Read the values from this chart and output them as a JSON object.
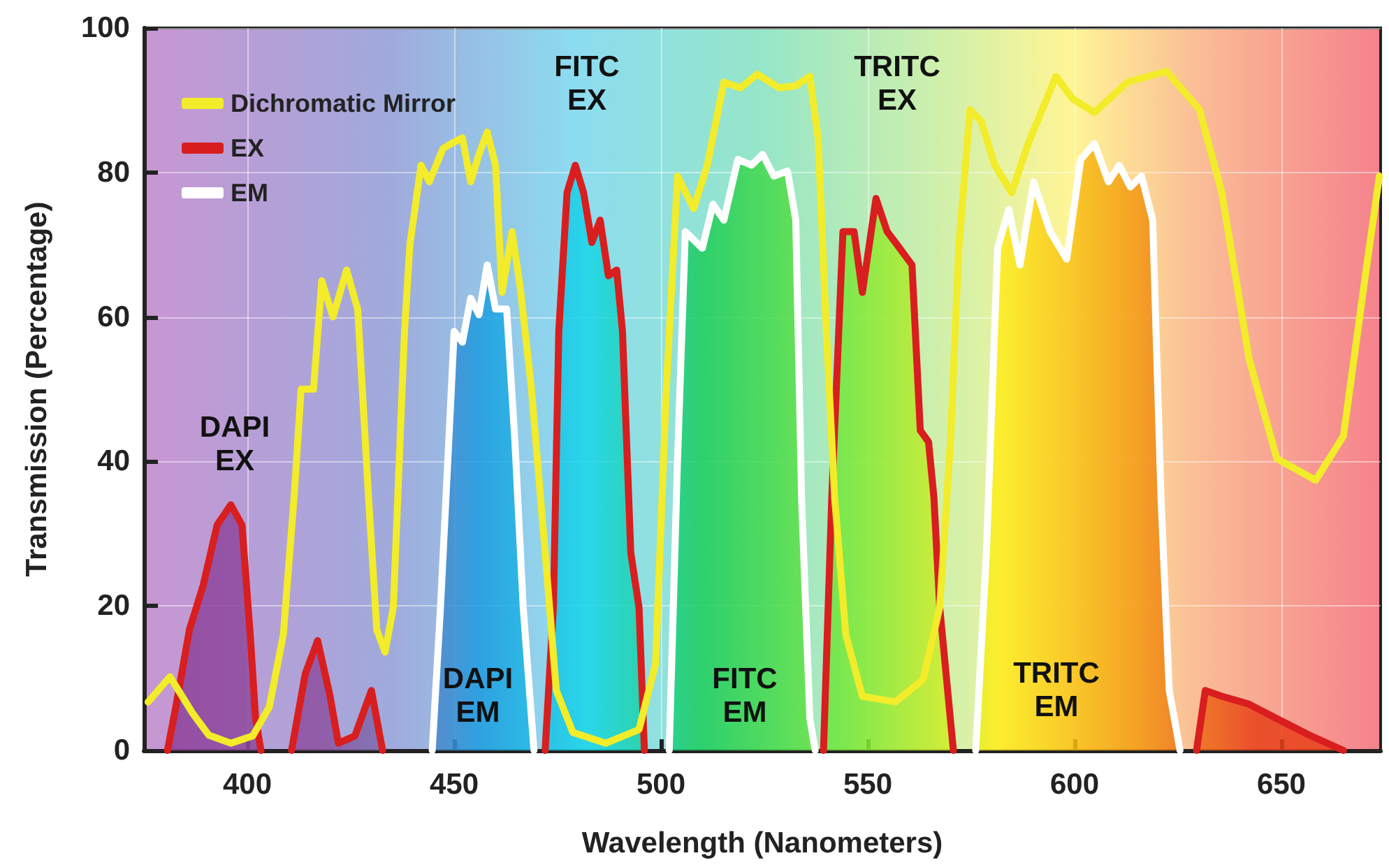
{
  "chart_data": {
    "type": "line",
    "xlabel": "Wavelength (Nanometers)",
    "ylabel": "Transmission (Percentage)",
    "xlim": [
      375,
      674
    ],
    "xticks": [
      400,
      450,
      500,
      550,
      600,
      650
    ],
    "ylim": [
      0,
      100
    ],
    "yticks": [
      0,
      20,
      40,
      60,
      80,
      100
    ],
    "grid": true,
    "legend": "top left",
    "marker": "none",
    "line_style": "solid",
    "series": [
      {
        "name": "Dichromatic Mirror",
        "type": "line",
        "color": "#f2ec2a",
        "x": [
          376,
          381.3,
          386.7,
          390.7,
          396,
          401.3,
          405.3,
          408.7,
          411.3,
          413,
          416,
          418,
          420.7,
          424,
          426.7,
          429.3,
          431.3,
          433.3,
          435.3,
          438,
          439.3,
          442,
          444,
          447.3,
          449.3,
          452,
          454,
          456,
          458,
          460,
          461.6,
          464,
          466,
          468.7,
          472,
          474.7,
          478.7,
          486.7,
          494.7,
          498.7,
          501.3,
          504,
          507.9,
          511.2,
          515.2,
          519.2,
          523.3,
          528.6,
          532.6,
          536,
          538,
          540,
          542,
          544.7,
          548.7,
          556.7,
          563.4,
          567.4,
          570,
          572,
          574.7,
          577.4,
          580.7,
          584.8,
          588.8,
          595.5,
          599.5,
          604.8,
          612.8,
          622.2,
          630.2,
          635.6,
          642.2,
          648.9,
          658.3,
          665,
          670.3,
          673.7
        ],
        "values": [
          6.7,
          10.2,
          5.2,
          2.1,
          1,
          2,
          6,
          16,
          35,
          50,
          50,
          65,
          60,
          66.5,
          61,
          35,
          16.7,
          13.6,
          19.8,
          58,
          70,
          81,
          78.7,
          83.3,
          84,
          84.8,
          78.7,
          82.5,
          85.6,
          81,
          63.4,
          71.8,
          64,
          50,
          27.4,
          8.3,
          2.5,
          1,
          2.9,
          12,
          50,
          79.5,
          75,
          81,
          92.5,
          91.7,
          93.6,
          91.7,
          92,
          93.3,
          84.8,
          58,
          35,
          16,
          7.5,
          6.7,
          9.8,
          19.8,
          42.7,
          69.5,
          88.7,
          87.1,
          81,
          77.2,
          84,
          93.3,
          90.2,
          88.3,
          92.5,
          94,
          88.7,
          77.2,
          54.2,
          40.4,
          37.4,
          43.5,
          65.7,
          79.5
        ]
      },
      {
        "name": "EX",
        "type": "area",
        "color": "#d81e1e",
        "x": [
          380.7,
          382.7,
          386,
          389.3,
          392.7,
          396,
          398.7,
          400.7,
          402,
          403.3,
          407,
          410.7,
          414,
          417,
          420,
          422,
          426,
          430,
          432.7,
          450,
          472,
          474,
          475.3,
          477.3,
          479.3,
          481.3,
          483.3,
          485.3,
          487.3,
          489.3,
          490.7,
          492.7,
          494.7,
          496,
          520,
          539.3,
          541.3,
          544,
          546.7,
          548.7,
          552,
          554.7,
          556.7,
          560.7,
          562.7,
          564.7,
          566,
          567.4,
          570.7,
          600,
          629.5,
          631.6,
          635.6,
          642.2,
          648.9,
          656.8,
          665
        ],
        "values": [
          0,
          6,
          16.7,
          22.8,
          31.2,
          34,
          31.2,
          16,
          4.4,
          0,
          null,
          0,
          10.6,
          15.2,
          7.5,
          1,
          2,
          8.3,
          0,
          null,
          0,
          19.8,
          58,
          77.2,
          81,
          77.2,
          70.3,
          73.4,
          65.7,
          66.5,
          58,
          27.4,
          19.8,
          0,
          null,
          0,
          35,
          71.8,
          71.8,
          63.4,
          76.4,
          71.8,
          70.3,
          67.2,
          44.3,
          42.7,
          35,
          19.8,
          0,
          null,
          0,
          8.3,
          7.5,
          6.4,
          4.4,
          2.1,
          0
        ]
      },
      {
        "name": "EM",
        "type": "area",
        "color": "#ffffff",
        "x": [
          444.7,
          446.7,
          448.7,
          450,
          452,
          454,
          456,
          458,
          460,
          462.7,
          464.7,
          466.7,
          469.3,
          485,
          502,
          504,
          505.9,
          510,
          512.6,
          515.2,
          518.6,
          521.9,
          524.6,
          527.3,
          530.6,
          532.6,
          534,
          536,
          537.3,
          560,
          576.1,
          578.7,
          581.4,
          584.1,
          586.8,
          590.1,
          594.1,
          598.1,
          601.5,
          604.8,
          608.2,
          610.8,
          613.5,
          616.2,
          618.9,
          620.9,
          622.9,
          625.5
        ],
        "values": [
          0,
          19.8,
          42.7,
          58,
          56.5,
          62.6,
          60.3,
          67.2,
          61.1,
          61.1,
          42.7,
          19.8,
          0,
          null,
          0,
          40,
          71.8,
          69.5,
          75.6,
          73.4,
          81.8,
          81,
          82.5,
          79.5,
          80.2,
          73.4,
          35,
          4.4,
          0,
          null,
          0,
          27.4,
          69.5,
          74.9,
          67.2,
          78.7,
          71.8,
          68,
          81.8,
          84,
          78.7,
          81,
          78,
          79.5,
          73.4,
          35,
          8.3,
          0
        ]
      }
    ],
    "annotations": [
      "DAPI EX",
      "FITC EX",
      "TRITC EX",
      "DAPI EM",
      "FITC EM",
      "TRITC EM"
    ]
  }
}
